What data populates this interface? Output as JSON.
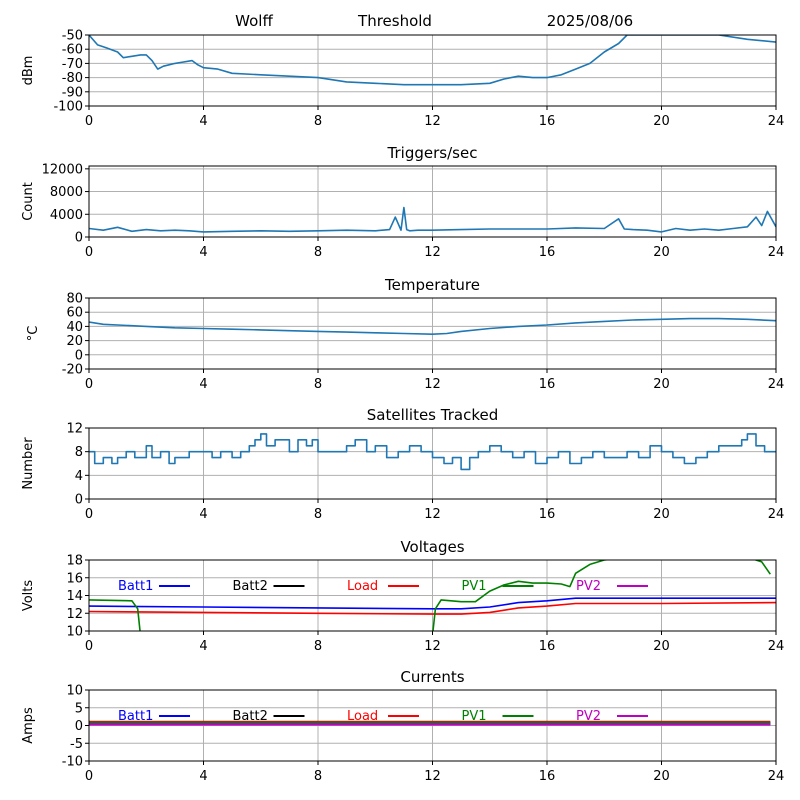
{
  "header": {
    "station": "Wolff",
    "plot_name": "Threshold",
    "date": "2025/08/06"
  },
  "chart_data": [
    {
      "type": "line",
      "title": "",
      "ylabel": "dBm",
      "x_ticks": [
        0,
        4,
        8,
        12,
        16,
        20,
        24
      ],
      "xlim": [
        0,
        24
      ],
      "y_ticks": [
        -100,
        -90,
        -80,
        -70,
        -60,
        -50
      ],
      "ylim": [
        -100,
        -50
      ],
      "grid": true,
      "legend": "none",
      "series": [
        {
          "name": "",
          "color": "#1f77b4",
          "x": [
            0,
            0.3,
            0.6,
            1.0,
            1.2,
            1.5,
            1.8,
            2.0,
            2.2,
            2.4,
            2.6,
            2.8,
            3.0,
            3.3,
            3.6,
            3.8,
            4.0,
            4.5,
            5.0,
            6.0,
            7.0,
            8.0,
            9.0,
            10.0,
            11.0,
            12.0,
            13.0,
            14.0,
            14.5,
            15.0,
            15.5,
            16.0,
            16.5,
            17.0,
            17.5,
            18.0,
            18.5,
            18.8,
            19.5,
            20.0,
            21.0,
            22.0,
            23.0,
            24.0
          ],
          "y": [
            -50,
            -57,
            -59,
            -62,
            -66,
            -65,
            -64,
            -64,
            -68,
            -74,
            -72,
            -71,
            -70,
            -69,
            -68,
            -71,
            -73,
            -74,
            -77,
            -78,
            -79,
            -80,
            -83,
            -84,
            -85,
            -85,
            -85,
            -84,
            -81,
            -79,
            -80,
            -80,
            -78,
            -74,
            -70,
            -62,
            -56,
            -50,
            -50,
            -50,
            -50,
            -50,
            -53,
            -55
          ]
        }
      ]
    },
    {
      "type": "line",
      "title": "Triggers/sec",
      "ylabel": "Count",
      "x_ticks": [
        0,
        4,
        8,
        12,
        16,
        20,
        24
      ],
      "xlim": [
        0,
        24
      ],
      "y_ticks": [
        0,
        4000,
        8000,
        12000
      ],
      "ylim": [
        0,
        12500
      ],
      "grid": true,
      "legend": "none",
      "series": [
        {
          "name": "",
          "color": "#1f77b4",
          "x": [
            0,
            0.5,
            1.0,
            1.5,
            2.0,
            2.5,
            3.0,
            3.5,
            4.0,
            5.0,
            6.0,
            7.0,
            8.0,
            9.0,
            10.0,
            10.5,
            10.7,
            10.9,
            11.0,
            11.1,
            11.2,
            11.5,
            12.0,
            13.0,
            14.0,
            15.0,
            16.0,
            17.0,
            18.0,
            18.5,
            18.7,
            19.0,
            19.5,
            20.0,
            20.5,
            21.0,
            21.5,
            22.0,
            22.5,
            23.0,
            23.3,
            23.5,
            23.7,
            24.0
          ],
          "y": [
            1500,
            1200,
            1700,
            1000,
            1300,
            1100,
            1200,
            1100,
            900,
            1000,
            1100,
            1000,
            1100,
            1200,
            1100,
            1300,
            3500,
            1200,
            5200,
            1300,
            1100,
            1200,
            1200,
            1300,
            1400,
            1400,
            1400,
            1600,
            1500,
            3200,
            1400,
            1300,
            1200,
            900,
            1500,
            1200,
            1400,
            1200,
            1500,
            1800,
            3500,
            2000,
            4500,
            1800
          ]
        }
      ]
    },
    {
      "type": "line",
      "title": "Temperature",
      "ylabel": "°C",
      "x_ticks": [
        0,
        4,
        8,
        12,
        16,
        20,
        24
      ],
      "xlim": [
        0,
        24
      ],
      "y_ticks": [
        -20,
        0,
        20,
        40,
        60,
        80
      ],
      "ylim": [
        -20,
        80
      ],
      "grid": true,
      "legend": "none",
      "series": [
        {
          "name": "",
          "color": "#1f77b4",
          "x": [
            0,
            0.5,
            1.0,
            2.0,
            3.0,
            4.0,
            5.0,
            6.0,
            7.0,
            8.0,
            9.0,
            10.0,
            11.0,
            12.0,
            12.5,
            13.0,
            14.0,
            15.0,
            16.0,
            17.0,
            18.0,
            19.0,
            20.0,
            21.0,
            22.0,
            23.0,
            24.0
          ],
          "y": [
            46,
            43,
            42,
            40,
            38,
            37,
            36,
            35,
            34,
            33,
            32,
            31,
            30,
            29,
            30,
            33,
            37,
            40,
            42,
            45,
            47,
            49,
            50,
            51,
            51,
            50,
            48
          ]
        }
      ]
    },
    {
      "type": "line",
      "title": "Satellites Tracked",
      "ylabel": "Number",
      "x_ticks": [
        0,
        4,
        8,
        12,
        16,
        20,
        24
      ],
      "xlim": [
        0,
        24
      ],
      "y_ticks": [
        0,
        4,
        8,
        12
      ],
      "ylim": [
        0,
        12
      ],
      "grid": true,
      "legend": "none",
      "step": true,
      "series": [
        {
          "name": "",
          "color": "#1f77b4",
          "x": [
            0,
            0.2,
            0.5,
            0.8,
            1.0,
            1.3,
            1.6,
            2.0,
            2.2,
            2.5,
            2.8,
            3.0,
            3.5,
            4.0,
            4.3,
            4.6,
            5.0,
            5.3,
            5.6,
            5.8,
            6.0,
            6.2,
            6.5,
            7.0,
            7.3,
            7.6,
            7.8,
            8.0,
            8.5,
            9.0,
            9.3,
            9.7,
            10.0,
            10.4,
            10.8,
            11.2,
            11.6,
            12.0,
            12.4,
            12.7,
            13.0,
            13.3,
            13.6,
            14.0,
            14.4,
            14.8,
            15.2,
            15.6,
            16.0,
            16.4,
            16.8,
            17.2,
            17.6,
            18.0,
            18.4,
            18.8,
            19.2,
            19.6,
            20.0,
            20.4,
            20.8,
            21.2,
            21.6,
            22.0,
            22.4,
            22.8,
            23.0,
            23.3,
            23.6,
            24.0
          ],
          "y": [
            8,
            6,
            7,
            6,
            7,
            8,
            7,
            9,
            7,
            8,
            6,
            7,
            8,
            8,
            7,
            8,
            7,
            8,
            9,
            10,
            11,
            9,
            10,
            8,
            10,
            9,
            10,
            8,
            8,
            9,
            10,
            8,
            9,
            7,
            8,
            9,
            8,
            7,
            6,
            7,
            5,
            7,
            8,
            9,
            8,
            7,
            8,
            6,
            7,
            8,
            6,
            7,
            8,
            7,
            7,
            8,
            7,
            9,
            8,
            7,
            6,
            7,
            8,
            9,
            9,
            10,
            11,
            9,
            8,
            8
          ]
        }
      ]
    },
    {
      "type": "line",
      "title": "Voltages",
      "ylabel": "Volts",
      "x_ticks": [
        0,
        4,
        8,
        12,
        16,
        20,
        24
      ],
      "xlim": [
        0,
        24
      ],
      "y_ticks": [
        10,
        12,
        14,
        16,
        18
      ],
      "ylim": [
        10,
        18
      ],
      "grid": true,
      "legend": "top, inline",
      "series": [
        {
          "name": "Batt1",
          "color": "#0000ff",
          "x": [
            0,
            4,
            8,
            12,
            13,
            14,
            15,
            16,
            17,
            18,
            20,
            24
          ],
          "y": [
            12.8,
            12.7,
            12.6,
            12.5,
            12.5,
            12.7,
            13.2,
            13.4,
            13.7,
            13.7,
            13.7,
            13.7
          ]
        },
        {
          "name": "Batt2",
          "color": "#000000",
          "x": [],
          "y": []
        },
        {
          "name": "Load",
          "color": "#ff0000",
          "x": [
            0,
            4,
            8,
            12,
            13,
            14,
            15,
            16,
            17,
            18,
            20,
            24
          ],
          "y": [
            12.2,
            12.1,
            12.0,
            11.9,
            11.9,
            12.1,
            12.6,
            12.8,
            13.1,
            13.1,
            13.1,
            13.2
          ]
        },
        {
          "name": "PV1",
          "color": "#008000",
          "x": [
            0,
            1.5,
            1.7,
            1.8,
            12.0,
            12.1,
            12.3,
            13.0,
            13.5,
            14.0,
            14.5,
            15.0,
            15.5,
            16.0,
            16.5,
            16.8,
            17.0,
            17.5,
            18.0,
            19.0,
            20.0,
            23.0,
            23.5,
            23.8
          ],
          "y": [
            13.5,
            13.4,
            12.5,
            9.5,
            9.5,
            12.5,
            13.5,
            13.3,
            13.3,
            14.5,
            15.2,
            15.6,
            15.4,
            15.4,
            15.3,
            15.0,
            16.5,
            17.5,
            18.0,
            18.3,
            18.5,
            18.3,
            17.8,
            16.4
          ]
        },
        {
          "name": "PV2",
          "color": "#bf00bf",
          "x": [],
          "y": []
        }
      ]
    },
    {
      "type": "line",
      "title": "Currents",
      "ylabel": "Amps",
      "x_ticks": [
        0,
        4,
        8,
        12,
        16,
        20,
        24
      ],
      "xlim": [
        0,
        24
      ],
      "y_ticks": [
        -10,
        -5,
        0,
        5,
        10
      ],
      "ylim": [
        -10,
        10
      ],
      "grid": true,
      "legend": "top, inline",
      "series": [
        {
          "name": "Batt1",
          "color": "#0000ff",
          "x": [
            0,
            23.8
          ],
          "y": [
            0.4,
            0.4
          ]
        },
        {
          "name": "Batt2",
          "color": "#000000",
          "x": [
            0,
            23.8
          ],
          "y": [
            0.6,
            0.6
          ]
        },
        {
          "name": "Load",
          "color": "#ff0000",
          "x": [
            0,
            23.8
          ],
          "y": [
            1.0,
            1.0
          ]
        },
        {
          "name": "PV1",
          "color": "#008000",
          "x": [
            0,
            23.8
          ],
          "y": [
            0.8,
            0.8
          ]
        },
        {
          "name": "PV2",
          "color": "#bf00bf",
          "x": [
            0,
            23.8
          ],
          "y": [
            0.3,
            0.3
          ]
        }
      ]
    }
  ]
}
